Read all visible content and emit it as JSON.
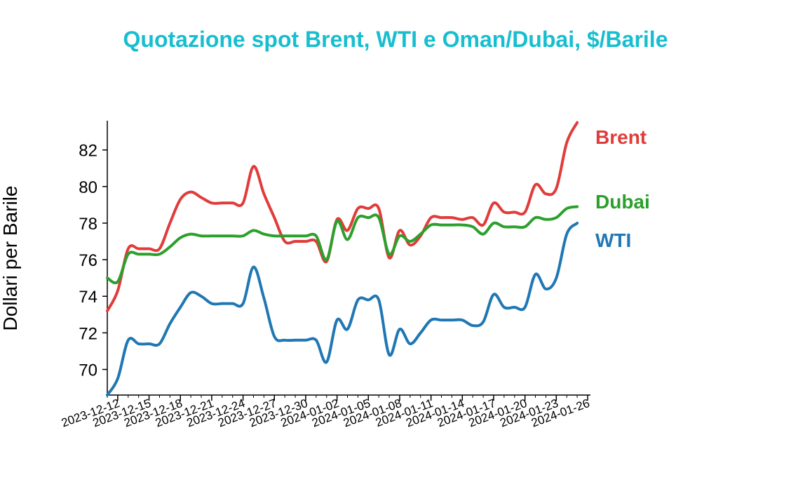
{
  "chart_data": {
    "type": "line",
    "title": "Quotazione spot Brent, WTI e Oman/Dubai, $/Barile",
    "xlabel": "",
    "ylabel": "Dollari per Barile",
    "ylim": [
      68.6,
      83.6
    ],
    "xlim": [
      "2023-12-11",
      "2024-01-26"
    ],
    "yticks": [
      70,
      72,
      74,
      76,
      78,
      80,
      82
    ],
    "xticks": [
      "2023-12-12",
      "2023-12-15",
      "2023-12-18",
      "2023-12-21",
      "2023-12-24",
      "2023-12-27",
      "2023-12-30",
      "2024-01-02",
      "2024-01-05",
      "2024-01-08",
      "2024-01-11",
      "2024-01-14",
      "2024-01-17",
      "2024-01-20",
      "2024-01-23",
      "2024-01-26"
    ],
    "grid": false,
    "legend": "direct-labels-right",
    "x": [
      "2023-12-11",
      "2023-12-12",
      "2023-12-13",
      "2023-12-14",
      "2023-12-15",
      "2023-12-16",
      "2023-12-17",
      "2023-12-18",
      "2023-12-19",
      "2023-12-20",
      "2023-12-21",
      "2023-12-22",
      "2023-12-23",
      "2023-12-24",
      "2023-12-25",
      "2023-12-26",
      "2023-12-27",
      "2023-12-28",
      "2023-12-29",
      "2023-12-30",
      "2023-12-31",
      "2024-01-01",
      "2024-01-02",
      "2024-01-03",
      "2024-01-04",
      "2024-01-05",
      "2024-01-06",
      "2024-01-07",
      "2024-01-08",
      "2024-01-09",
      "2024-01-10",
      "2024-01-11",
      "2024-01-12",
      "2024-01-13",
      "2024-01-14",
      "2024-01-15",
      "2024-01-16",
      "2024-01-17",
      "2024-01-18",
      "2024-01-19",
      "2024-01-20",
      "2024-01-21",
      "2024-01-22",
      "2024-01-23",
      "2024-01-24",
      "2024-01-25",
      "2024-01-26"
    ],
    "series": [
      {
        "name": "Brent",
        "color": "#e03c3a",
        "values": [
          73.2,
          74.3,
          76.6,
          76.6,
          76.6,
          76.6,
          78.0,
          79.3,
          79.7,
          79.4,
          79.1,
          79.1,
          79.1,
          79.1,
          81.1,
          79.6,
          78.3,
          77.0,
          77.0,
          77.0,
          77.0,
          75.9,
          78.2,
          77.6,
          78.8,
          78.8,
          78.8,
          76.1,
          77.6,
          76.8,
          77.3,
          78.3,
          78.3,
          78.3,
          78.2,
          78.3,
          77.9,
          79.1,
          78.6,
          78.6,
          78.6,
          80.1,
          79.6,
          79.9,
          82.4,
          83.5,
          null
        ]
      },
      {
        "name": "Dubai",
        "color": "#2ca02c",
        "values": [
          75.0,
          74.8,
          76.3,
          76.3,
          76.3,
          76.3,
          76.7,
          77.2,
          77.4,
          77.3,
          77.3,
          77.3,
          77.3,
          77.3,
          77.6,
          77.4,
          77.3,
          77.3,
          77.3,
          77.3,
          77.3,
          76.0,
          78.1,
          77.1,
          78.3,
          78.3,
          78.3,
          76.3,
          77.3,
          77.0,
          77.4,
          77.9,
          77.9,
          77.9,
          77.9,
          77.8,
          77.4,
          78.0,
          77.8,
          77.8,
          77.8,
          78.3,
          78.2,
          78.3,
          78.8,
          78.9,
          null
        ]
      },
      {
        "name": "WTI",
        "color": "#1f77b4",
        "values": [
          68.6,
          69.5,
          71.6,
          71.4,
          71.4,
          71.4,
          72.5,
          73.4,
          74.2,
          74.0,
          73.6,
          73.6,
          73.6,
          73.6,
          75.6,
          73.9,
          71.8,
          71.6,
          71.6,
          71.6,
          71.6,
          70.4,
          72.7,
          72.2,
          73.8,
          73.8,
          73.8,
          70.8,
          72.2,
          71.4,
          72.0,
          72.7,
          72.7,
          72.7,
          72.7,
          72.4,
          72.6,
          74.1,
          73.4,
          73.4,
          73.4,
          75.2,
          74.4,
          75.0,
          77.4,
          78.0,
          null
        ]
      }
    ]
  }
}
